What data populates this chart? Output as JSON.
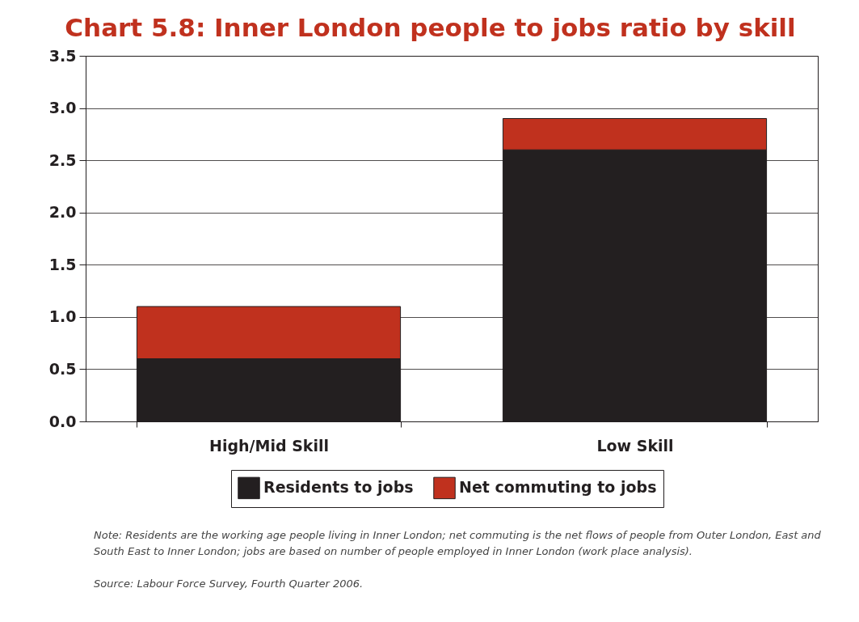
{
  "chart_data": {
    "type": "bar",
    "title": "Chart 5.8: Inner London people to jobs ratio by skill",
    "categories": [
      "High/Mid Skill",
      "Low Skill"
    ],
    "series": [
      {
        "name": "Residents to jobs",
        "color": "#231f20",
        "values": [
          0.6,
          2.6
        ]
      },
      {
        "name": "Net commuting to jobs",
        "color": "#c0311e",
        "values": [
          0.5,
          0.3
        ]
      }
    ],
    "stacked": true,
    "ylim": [
      0,
      3.5
    ],
    "yticks": [
      {
        "value": 0,
        "label": "0.0"
      },
      {
        "value": 0.5,
        "label": "0.5"
      },
      {
        "value": 1,
        "label": "1.0"
      },
      {
        "value": 1.5,
        "label": "1.5"
      },
      {
        "value": 2,
        "label": "2.0"
      },
      {
        "value": 2.5,
        "label": "2.5"
      },
      {
        "value": 3,
        "label": "3.0"
      },
      {
        "value": 3.5,
        "label": "3.5"
      }
    ],
    "grid": "y",
    "legend": "bottom",
    "annotations": [
      "Note: Residents are the working age people living in Inner London; net commuting is the net flows of people from Outer London, East and South East to Inner London; jobs are based on number of people employed in Inner London (work place analysis).",
      "Source: Labour Force Survey, Fourth Quarter 2006."
    ]
  }
}
